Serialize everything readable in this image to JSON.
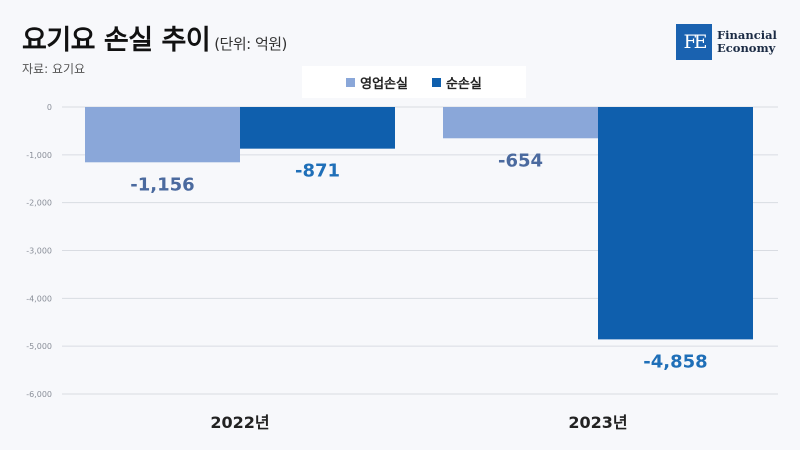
{
  "header": {
    "title": "요기요 손실 추이",
    "unit": "(단위: 억원)",
    "source": "자료: 요기요"
  },
  "logo": {
    "mark": "FE",
    "line1": "Financial",
    "line2": "Economy"
  },
  "chart_data": {
    "type": "bar",
    "title": "요기요 손실 추이",
    "subtitle": "(단위: 억원)",
    "categories": [
      "2022년",
      "2023년"
    ],
    "series": [
      {
        "name": "영업손실",
        "values": [
          -1156,
          -654
        ],
        "labels": [
          "-1,156",
          "-654"
        ],
        "color": "#8aa7d9",
        "label_color": "#4b6a9f"
      },
      {
        "name": "순손실",
        "values": [
          -871,
          -4858
        ],
        "labels": [
          "-871",
          "-4,858"
        ],
        "color": "#0f5fad",
        "label_color": "#1f6fb8"
      }
    ],
    "ylim": [
      -6000,
      0
    ],
    "yticks": [
      0,
      -1000,
      -2000,
      -3000,
      -4000,
      -5000,
      -6000
    ],
    "ytick_labels": [
      "0",
      "-1,000",
      "-2,000",
      "-3,000",
      "-4,000",
      "-5,000",
      "-6,000"
    ],
    "grid": true,
    "legend_position": "top-center"
  }
}
